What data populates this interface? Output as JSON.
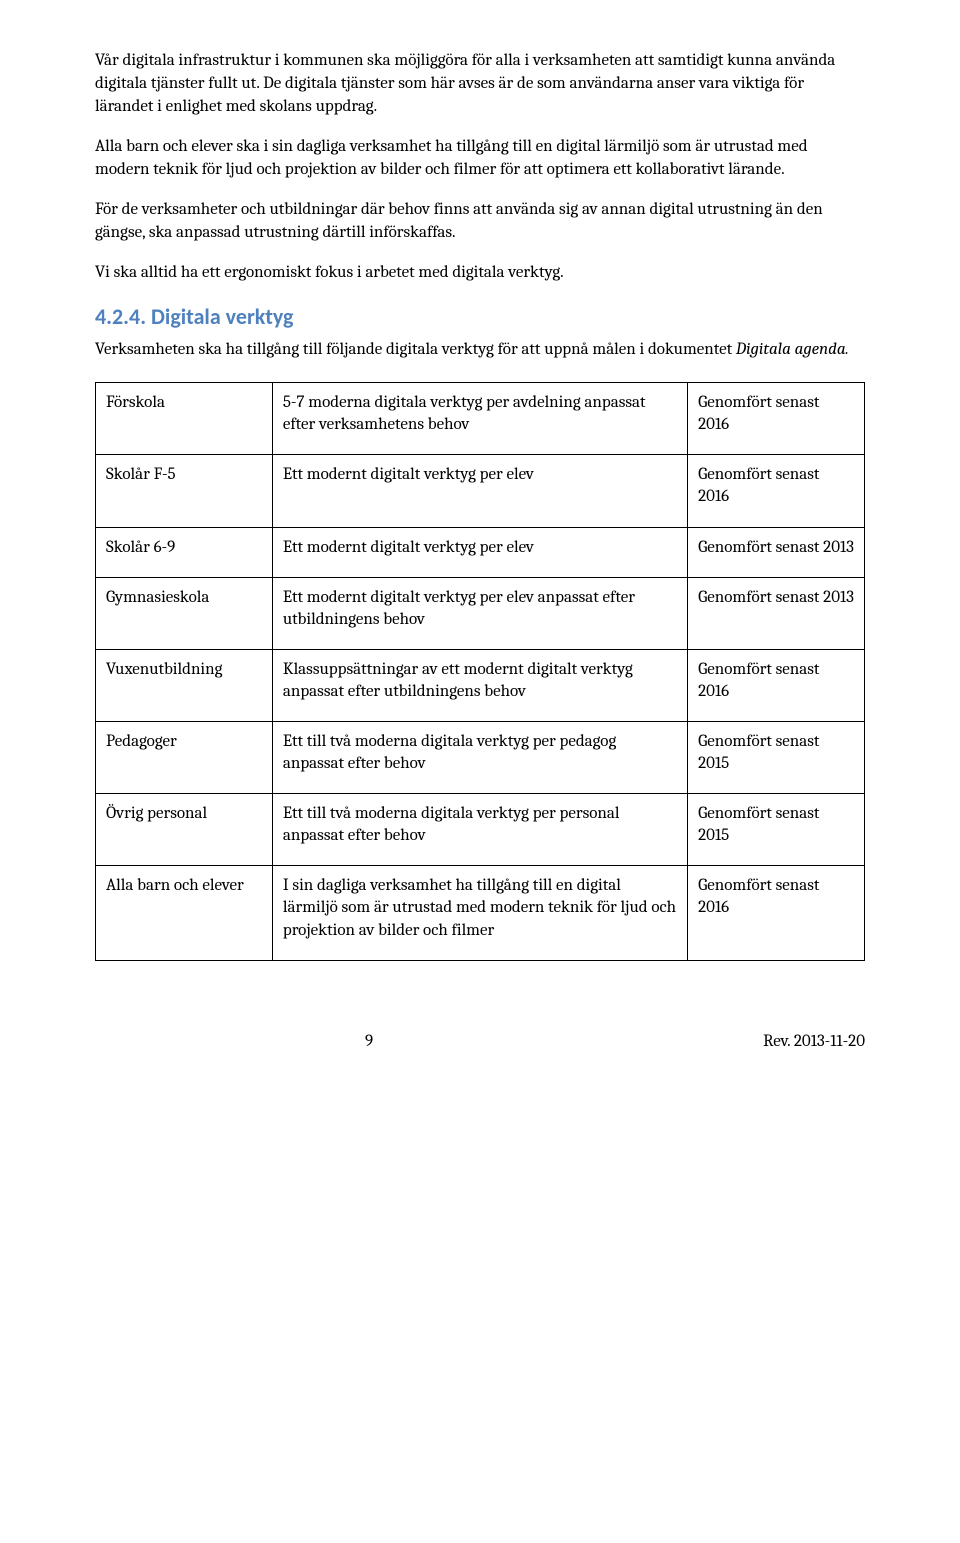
{
  "paragraphs": {
    "p1": "Vår digitala infrastruktur i kommunen ska möjliggöra för alla i verksamheten att samtidigt kunna använda digitala tjänster fullt ut. De digitala tjänster som här avses är de som användarna anser vara viktiga för lärandet i enlighet med skolans uppdrag.",
    "p2": "Alla barn och elever ska i sin dagliga verksamhet ha tillgång till en digital lärmiljö som är utrustad med modern teknik för ljud och projektion av bilder och filmer för att optimera ett kollaborativt lärande.",
    "p3": "För de verksamheter och utbildningar där behov finns att använda sig av annan digital utrustning än den gängse, ska anpassad utrustning därtill införskaffas.",
    "p4": "Vi ska alltid ha ett ergonomiskt fokus i arbetet med digitala verktyg."
  },
  "heading": "4.2.4. Digitala verktyg",
  "intro_prefix": "Verksamheten ska ha tillgång till följande digitala verktyg för att uppnå målen i dokumentet ",
  "intro_em": "Digitala agenda.",
  "table": {
    "rows": [
      {
        "c1": "Förskola",
        "c2": "5-7 moderna digitala verktyg per avdelning anpassat efter verksamhetens behov",
        "c3": "Genomfört senast 2016"
      },
      {
        "c1": "Skolår F-5",
        "c2": "Ett modernt digitalt verktyg per elev",
        "c3": "Genomfört senast 2016"
      },
      {
        "c1": "Skolår 6-9",
        "c2": "Ett modernt digitalt verktyg per elev",
        "c3": "Genomfört senast 2013"
      },
      {
        "c1": "Gymnasieskola",
        "c2": "Ett modernt digitalt verktyg per elev anpassat efter utbildningens behov",
        "c3": "Genomfört senast 2013"
      },
      {
        "c1": "Vuxenutbildning",
        "c2": "Klassuppsättningar av ett modernt digitalt verktyg anpassat efter utbildningens behov",
        "c3": "Genomfört senast 2016"
      },
      {
        "c1": "Pedagoger",
        "c2": "Ett till två moderna digitala verktyg per pedagog anpassat efter behov",
        "c3": "Genomfört senast 2015"
      },
      {
        "c1": "Övrig personal",
        "c2": "Ett till två moderna digitala verktyg per personal anpassat efter behov",
        "c3": "Genomfört senast 2015"
      },
      {
        "c1": "Alla barn och elever",
        "c2": "I sin dagliga verksamhet ha tillgång till en digital lärmiljö som är utrustad med modern teknik för ljud och projektion av bilder och filmer",
        "c3": "Genomfört senast 2016"
      }
    ]
  },
  "footer": {
    "page": "9",
    "rev": "Rev. 2013-11-20"
  }
}
